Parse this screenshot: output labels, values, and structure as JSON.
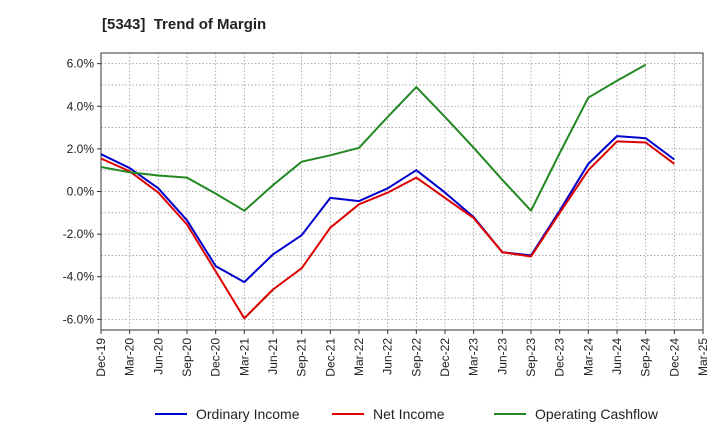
{
  "chart_data": {
    "type": "line",
    "title": "[5343]  Trend of Margin",
    "xlabel": "",
    "ylabel": "",
    "categories": [
      "Dec-19",
      "Mar-20",
      "Jun-20",
      "Sep-20",
      "Dec-20",
      "Mar-21",
      "Jun-21",
      "Sep-21",
      "Dec-21",
      "Mar-22",
      "Jun-22",
      "Sep-22",
      "Dec-22",
      "Mar-23",
      "Jun-23",
      "Sep-23",
      "Dec-23",
      "Mar-24",
      "Jun-24",
      "Sep-24",
      "Dec-24",
      "Mar-25"
    ],
    "y_ticks": [
      -6.0,
      -4.0,
      -2.0,
      0.0,
      2.0,
      4.0,
      6.0
    ],
    "y_tick_labels": [
      "-6.0%",
      "-4.0%",
      "-2.0%",
      "0.0%",
      "2.0%",
      "4.0%",
      "6.0%"
    ],
    "ylim": [
      -6.5,
      6.5
    ],
    "grid": true,
    "legend_position": "bottom",
    "series": [
      {
        "name": "Ordinary Income",
        "color": "#0000cc",
        "values": [
          1.75,
          1.1,
          0.15,
          -1.35,
          -3.5,
          -4.25,
          -2.95,
          -2.05,
          -0.3,
          -0.45,
          0.15,
          1.0,
          -0.05,
          -1.2,
          -2.85,
          -3.0,
          -0.9,
          1.3,
          2.6,
          2.5,
          1.5,
          null
        ]
      },
      {
        "name": "Net Income",
        "color": "#dd0000",
        "values": [
          1.55,
          0.95,
          -0.05,
          -1.55,
          -3.75,
          -5.95,
          -4.6,
          -3.6,
          -1.7,
          -0.6,
          -0.05,
          0.65,
          -0.3,
          -1.25,
          -2.85,
          -3.05,
          -1.0,
          1.0,
          2.35,
          2.3,
          1.3,
          null
        ]
      },
      {
        "name": "Operating Cashflow",
        "color": "#228822",
        "values": [
          1.15,
          0.9,
          0.75,
          0.65,
          -0.1,
          -0.9,
          0.3,
          1.4,
          1.7,
          2.05,
          3.5,
          4.9,
          3.5,
          2.05,
          0.55,
          -0.9,
          1.8,
          4.4,
          5.2,
          5.95,
          null,
          null
        ]
      }
    ]
  }
}
